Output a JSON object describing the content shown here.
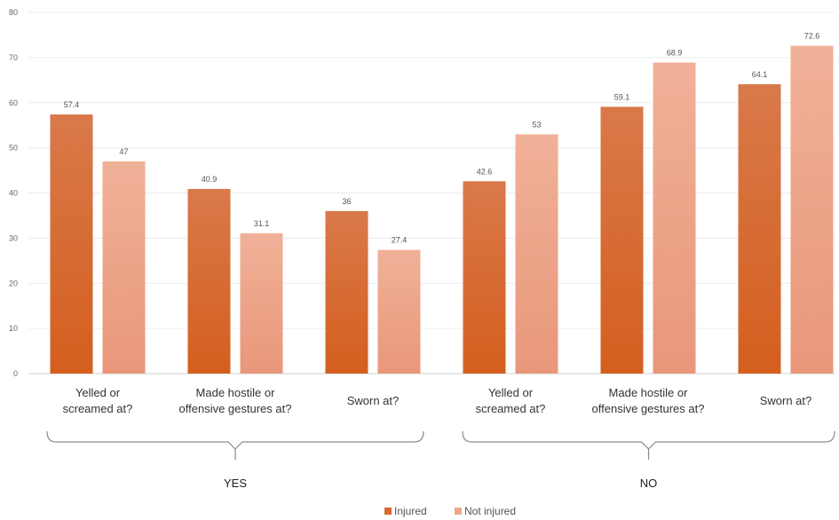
{
  "chart_data": {
    "type": "bar",
    "ylim": [
      0,
      80
    ],
    "yticks": [
      "0",
      "10",
      "20",
      "30",
      "40",
      "50",
      "60",
      "70",
      "80"
    ],
    "grid": true,
    "legend_position": "bottom-center",
    "categories": [
      [
        "Yelled or",
        "screamed at?"
      ],
      [
        "Made hostile or",
        "offensive gestures at?"
      ],
      [
        "Sworn at?"
      ],
      [
        "Yelled or",
        "screamed at?"
      ],
      [
        "Made hostile or",
        "offensive gestures at?"
      ],
      [
        "Sworn at?"
      ]
    ],
    "groups": [
      {
        "label": "YES",
        "categories": [
          0,
          1,
          2
        ]
      },
      {
        "label": "NO",
        "categories": [
          3,
          4,
          5
        ]
      }
    ],
    "series": [
      {
        "name": "Injured",
        "color": "#d8692f",
        "values": [
          57.4,
          40.9,
          36,
          42.6,
          59.1,
          64.1
        ],
        "labels": [
          "57.4",
          "40.9",
          "36",
          "42.6",
          "59.1",
          "64.1"
        ]
      },
      {
        "name": "Not injured",
        "color": "#eea78a",
        "values": [
          47,
          31.1,
          27.4,
          53,
          68.9,
          72.6
        ],
        "labels": [
          "47",
          "31.1",
          "27.4",
          "53",
          "68.9",
          "72.6"
        ]
      }
    ]
  }
}
